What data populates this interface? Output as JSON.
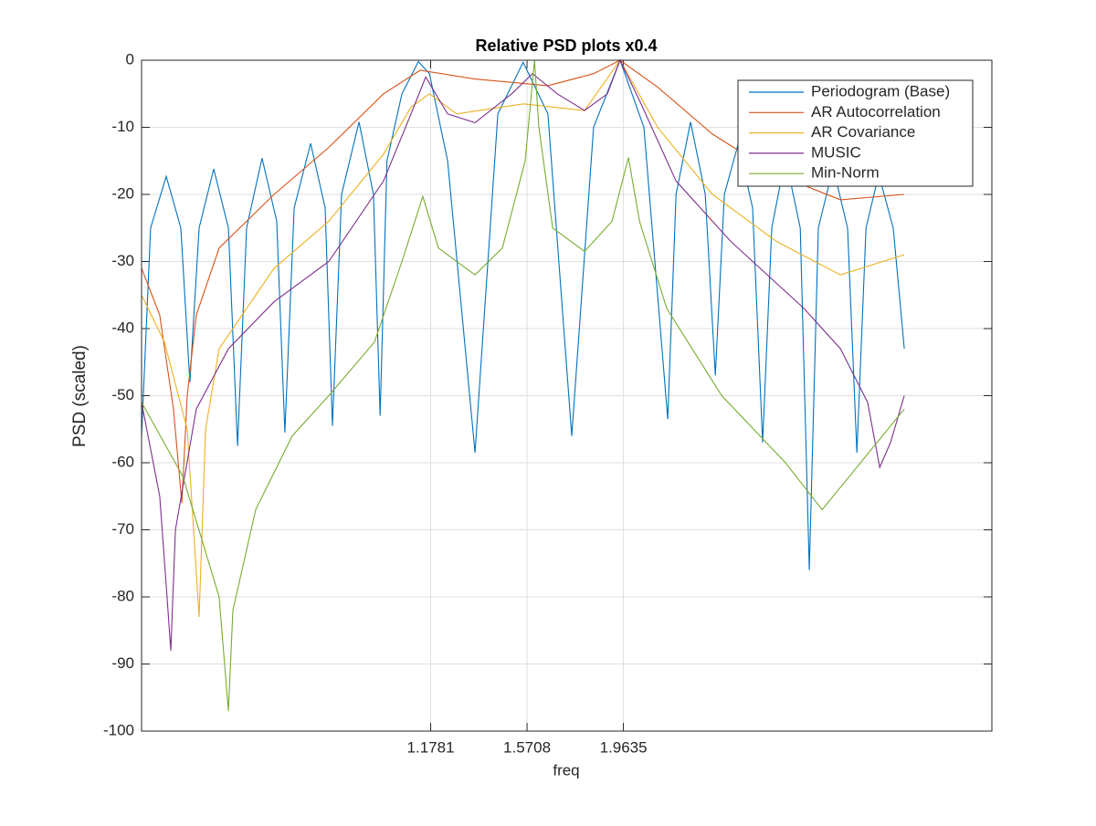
{
  "chart_data": {
    "type": "line",
    "title": "Relative PSD plots x0.4",
    "xlabel": "freq",
    "ylabel": "PSD (scaled)",
    "xlim": [
      0,
      3.465
    ],
    "ylim": [
      -100,
      0
    ],
    "xticks": [
      1.1781,
      1.5708,
      1.9635
    ],
    "yticks": [
      -100,
      -90,
      -80,
      -70,
      -60,
      -50,
      -40,
      -30,
      -20,
      -10,
      0
    ],
    "grid": true,
    "legend": "upper right",
    "series": [
      {
        "name": "Periodogram (Base)",
        "color": "#0072BD",
        "x": [
          0,
          0.037,
          0.1005,
          0.16,
          0.197,
          0.2345,
          0.294,
          0.354,
          0.391,
          0.428,
          0.491,
          0.551,
          0.584,
          0.622,
          0.689,
          0.748,
          0.778,
          0.815,
          0.886,
          0.945,
          0.972,
          1.0,
          1.061,
          1.128,
          1.173,
          1.247,
          1.359,
          1.452,
          1.555,
          1.656,
          1.753,
          1.842,
          1.95,
          2.047,
          2.144,
          2.178,
          2.237,
          2.297,
          2.338,
          2.375,
          2.431,
          2.49,
          2.531,
          2.568,
          2.624,
          2.684,
          2.721,
          2.758,
          2.818,
          2.877,
          2.915,
          2.952,
          3.004,
          3.063,
          3.108
        ],
        "values": [
          -56,
          -25,
          -17.3,
          -25,
          -48,
          -25,
          -16.2,
          -25,
          -57.5,
          -25,
          -14.6,
          -24,
          -55.5,
          -22,
          -12.4,
          -22,
          -54.5,
          -20,
          -9.2,
          -20,
          -53,
          -15,
          -5,
          -0.2,
          -2,
          -15,
          -58.5,
          -8,
          -0.3,
          -8,
          -56,
          -10,
          0,
          -10,
          -53.5,
          -20,
          -9.2,
          -20,
          -47,
          -20,
          -12.5,
          -22,
          -57,
          -25,
          -14.5,
          -25,
          -76,
          -25,
          -16,
          -25,
          -58.5,
          -25,
          -17,
          -25,
          -43
        ]
      },
      {
        "name": "AR Autocorrelation",
        "color": "#D95319",
        "x": [
          0,
          0.074,
          0.13,
          0.164,
          0.186,
          0.223,
          0.316,
          0.54,
          0.763,
          0.986,
          1.135,
          1.359,
          1.656,
          1.842,
          1.95,
          2.103,
          2.326,
          2.587,
          2.848,
          3.108
        ],
        "values": [
          -31,
          -38,
          -52,
          -66,
          -50,
          -38,
          -28,
          -20,
          -13,
          -5,
          -1.5,
          -2.8,
          -3.8,
          -2,
          0,
          -4,
          -11,
          -17,
          -20.8,
          -20
        ]
      },
      {
        "name": "AR Covariance",
        "color": "#EDB120",
        "x": [
          0,
          0.093,
          0.186,
          0.2345,
          0.261,
          0.316,
          0.54,
          0.763,
          0.986,
          1.098,
          1.173,
          1.284,
          1.556,
          1.805,
          1.95,
          2.103,
          2.326,
          2.587,
          2.848,
          3.108
        ],
        "values": [
          -35,
          -42,
          -55,
          -83,
          -55,
          -43,
          -31,
          -24,
          -14,
          -7,
          -5,
          -8,
          -6.5,
          -7.5,
          0,
          -10,
          -20,
          -27,
          -32,
          -29
        ]
      },
      {
        "name": "MUSIC",
        "color": "#7E2F8E",
        "x": [
          0,
          0.074,
          0.104,
          0.119,
          0.138,
          0.223,
          0.354,
          0.54,
          0.763,
          0.986,
          1.098,
          1.158,
          1.247,
          1.359,
          1.508,
          1.593,
          1.694,
          1.805,
          1.898,
          1.95,
          2.029,
          2.178,
          2.401,
          2.699,
          2.848,
          2.959,
          3.008,
          3.052,
          3.108
        ],
        "values": [
          -51,
          -65,
          -80,
          -88,
          -70,
          -52,
          -43,
          -36,
          -30,
          -18,
          -8,
          -2.5,
          -8,
          -9.3,
          -5,
          -2,
          -5,
          -7.5,
          -5,
          0,
          -6,
          -18,
          -27,
          -37,
          -43,
          -51,
          -60.7,
          -57,
          -50
        ]
      },
      {
        "name": "Min-Norm",
        "color": "#77AC30",
        "x": [
          0,
          0.168,
          0.316,
          0.354,
          0.372,
          0.465,
          0.614,
          0.763,
          0.949,
          1.061,
          1.146,
          1.21,
          1.359,
          1.47,
          1.563,
          1.601,
          1.619,
          1.675,
          1.805,
          1.917,
          1.984,
          2.029,
          2.14,
          2.364,
          2.624,
          2.773,
          2.885,
          3.108
        ],
        "values": [
          -51,
          -62,
          -80,
          -97,
          -82,
          -67,
          -56,
          -50,
          -42,
          -30,
          -20.3,
          -28,
          -32,
          -28,
          -15,
          0,
          -10,
          -25,
          -28.5,
          -24,
          -14.5,
          -24,
          -37,
          -50,
          -60,
          -67,
          -62,
          -52
        ]
      }
    ]
  }
}
